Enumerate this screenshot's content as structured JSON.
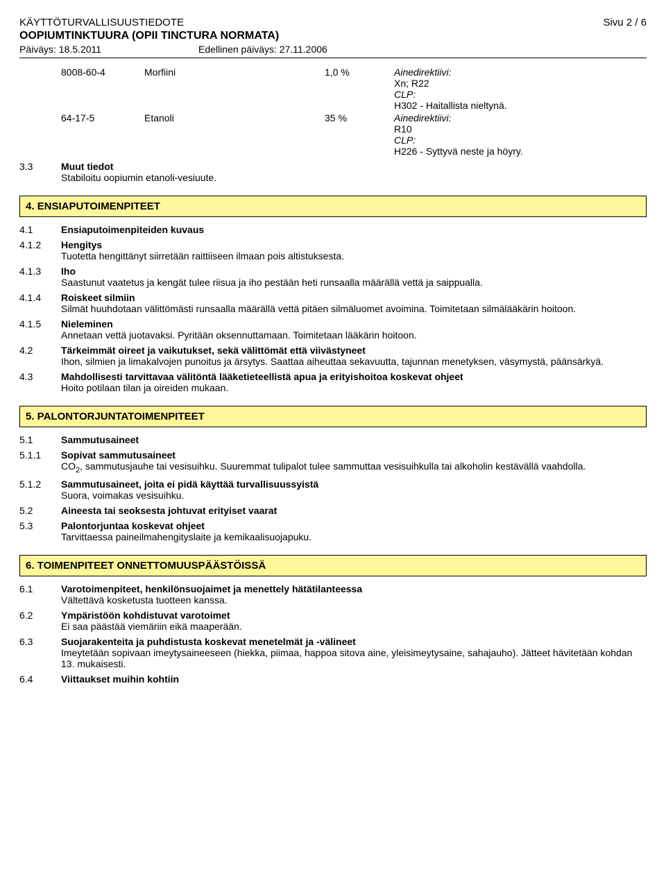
{
  "header": {
    "doc_type": "KÄYTTÖTURVALLISUUSTIEDOTE",
    "page_label": "Sivu 2 / 6",
    "product_title": "OOPIUMTINKTUURA (OPII TINCTURA NORMATA)",
    "date_label": "Päiväys: 18.5.2011",
    "prev_date_label": "Edellinen päiväys: 27.11.2006"
  },
  "ingredients": [
    {
      "cas": "8008-60-4",
      "name": "Morfiini",
      "pct": "1,0 %",
      "class": {
        "line1": "Ainedirektiivi:",
        "line2": "Xn; R22",
        "line3": "CLP:",
        "line4": "H302 - Haitallista nieltynä."
      }
    },
    {
      "cas": "64-17-5",
      "name": "Etanoli",
      "pct": "35 %",
      "class": {
        "line1": "Ainedirektiivi:",
        "line2": "R10",
        "line3": "CLP:",
        "line4": "H226 - Syttyvä neste ja höyry."
      }
    }
  ],
  "s3_3": {
    "num": "3.3",
    "heading": "Muut tiedot",
    "body": "Stabiloitu oopiumin etanoli-vesiuute."
  },
  "section4": {
    "title": "4. ENSIAPUTOIMENPITEET",
    "s4_1": {
      "num": "4.1",
      "heading": "Ensiaputoimenpiteiden kuvaus"
    },
    "s4_1_2": {
      "num": "4.1.2",
      "heading": "Hengitys",
      "body": "Tuotetta hengittänyt siirretään raittiiseen ilmaan pois altistuksesta."
    },
    "s4_1_3": {
      "num": "4.1.3",
      "heading": "Iho",
      "body": "Saastunut vaatetus ja kengät tulee riisua ja iho pestään heti runsaalla määrällä vettä ja saippualla."
    },
    "s4_1_4": {
      "num": "4.1.4",
      "heading": "Roiskeet silmiin",
      "body": "Silmät huuhdotaan välittömästi runsaalla määrällä vettä pitäen silmäluomet avoimina. Toimitetaan silmälääkärin hoitoon."
    },
    "s4_1_5": {
      "num": "4.1.5",
      "heading": "Nieleminen",
      "body": "Annetaan vettä juotavaksi. Pyritään oksennuttamaan. Toimitetaan lääkärin hoitoon."
    },
    "s4_2": {
      "num": "4.2",
      "heading": "Tärkeimmät oireet ja vaikutukset, sekä välittömät että viivästyneet",
      "body": "Ihon, silmien ja limakalvojen punoitus ja ärsytys. Saattaa aiheuttaa sekavuutta, tajunnan menetyksen, väsymystä, päänsärkyä."
    },
    "s4_3": {
      "num": "4.3",
      "heading": "Mahdollisesti tarvittavaa välitöntä lääketieteellistä apua ja erityishoitoa koskevat ohjeet",
      "body": "Hoito potilaan tilan ja oireiden mukaan."
    }
  },
  "section5": {
    "title": "5. PALONTORJUNTATOIMENPITEET",
    "s5_1": {
      "num": "5.1",
      "heading": "Sammutusaineet"
    },
    "s5_1_1": {
      "num": "5.1.1",
      "heading": "Sopivat sammutusaineet",
      "body_pre": "CO",
      "body_sub": "2",
      "body_post": ", sammutusjauhe tai vesisuihku. Suuremmat tulipalot tulee sammuttaa vesisuihkulla tai alkoholin kestävällä vaahdolla."
    },
    "s5_1_2": {
      "num": "5.1.2",
      "heading": "Sammutusaineet, joita ei pidä käyttää turvallisuussyistä",
      "body": "Suora, voimakas vesisuihku."
    },
    "s5_2": {
      "num": "5.2",
      "heading": "Aineesta tai seoksesta johtuvat erityiset vaarat"
    },
    "s5_3": {
      "num": "5.3",
      "heading": "Palontorjuntaa koskevat ohjeet",
      "body": "Tarvittaessa paineilmahengityslaite ja kemikaalisuojapuku."
    }
  },
  "section6": {
    "title": "6. TOIMENPITEET ONNETTOMUUSPÄÄSTÖISSÄ",
    "s6_1": {
      "num": "6.1",
      "heading": "Varotoimenpiteet, henkilönsuojaimet ja menettely hätätilanteessa",
      "body": "Vältettävä kosketusta tuotteen kanssa."
    },
    "s6_2": {
      "num": "6.2",
      "heading": "Ympäristöön kohdistuvat varotoimet",
      "body": "Ei saa päästää viemäriin eikä maaperään."
    },
    "s6_3": {
      "num": "6.3",
      "heading": "Suojarakenteita ja puhdistusta koskevat menetelmät ja -välineet",
      "body": "Imeytetään sopivaan imeytysaineeseen (hiekka, piimaa, happoa sitova aine, yleisimeytysaine, sahajauho). Jätteet hävitetään kohdan 13. mukaisesti."
    },
    "s6_4": {
      "num": "6.4",
      "heading": "Viittaukset muihin kohtiin"
    }
  }
}
